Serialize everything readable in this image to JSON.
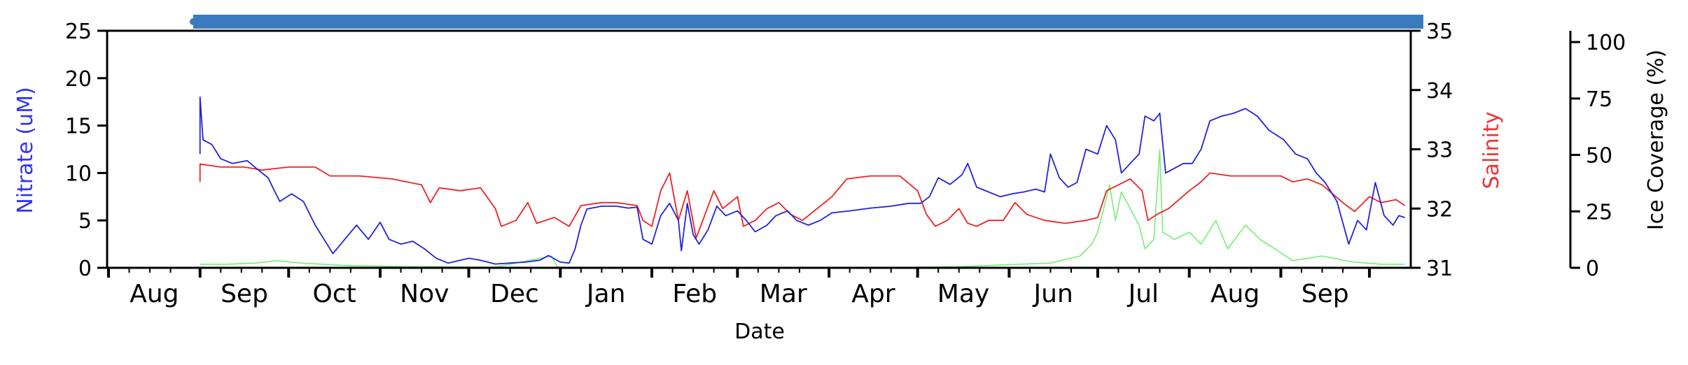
{
  "chart_data": {
    "type": "line",
    "xlabel": "Date",
    "x_ticks": [
      "Aug",
      "Sep",
      "Oct",
      "Nov",
      "Dec",
      "Jan",
      "Feb",
      "Mar",
      "Apr",
      "May",
      "Jun",
      "Jul",
      "Aug",
      "Sep"
    ],
    "axes": {
      "nitrate": {
        "label": "Nitrate (uM)",
        "ylim": [
          0,
          25
        ],
        "ticks": [
          "0",
          "5",
          "10",
          "15",
          "20",
          "25"
        ],
        "color": "#3333ee"
      },
      "salinity": {
        "label": "Salinity",
        "ylim": [
          31,
          35
        ],
        "ticks": [
          "31",
          "32",
          "33",
          "34",
          "35"
        ],
        "color": "#ee3333"
      },
      "ice": {
        "label": "Ice Coverage (%)",
        "ylim": [
          0,
          100
        ],
        "ticks": [
          "0",
          "25",
          "50",
          "75",
          "100"
        ],
        "color": "#000000"
      }
    },
    "grid": false,
    "series": [
      {
        "axis": "nitrate",
        "color": "#2222dd",
        "points": [
          [
            "2019-09-01",
            12.0
          ],
          [
            "2019-09-01",
            18.0
          ],
          [
            "2019-09-02",
            13.5
          ],
          [
            "2019-09-05",
            13.0
          ],
          [
            "2019-09-08",
            11.5
          ],
          [
            "2019-09-12",
            11.0
          ],
          [
            "2019-09-17",
            11.3
          ],
          [
            "2019-09-20",
            10.5
          ],
          [
            "2019-09-24",
            9.5
          ],
          [
            "2019-09-28",
            7.0
          ],
          [
            "2019-10-02",
            7.8
          ],
          [
            "2019-10-06",
            7.0
          ],
          [
            "2019-10-10",
            4.5
          ],
          [
            "2019-10-14",
            2.5
          ],
          [
            "2019-10-16",
            1.5
          ],
          [
            "2019-10-20",
            3.0
          ],
          [
            "2019-10-24",
            4.5
          ],
          [
            "2019-10-28",
            3.0
          ],
          [
            "2019-11-01",
            4.8
          ],
          [
            "2019-11-04",
            3.0
          ],
          [
            "2019-11-08",
            2.5
          ],
          [
            "2019-11-12",
            2.8
          ],
          [
            "2019-11-16",
            2.0
          ],
          [
            "2019-11-20",
            1.0
          ],
          [
            "2019-11-24",
            0.5
          ],
          [
            "2019-12-01",
            1.0
          ],
          [
            "2019-12-05",
            0.8
          ],
          [
            "2019-12-10",
            0.4
          ],
          [
            "2019-12-15",
            0.5
          ],
          [
            "2019-12-20",
            0.6
          ],
          [
            "2019-12-25",
            0.8
          ],
          [
            "2019-12-28",
            1.3
          ],
          [
            "2020-01-01",
            0.6
          ],
          [
            "2020-01-04",
            0.5
          ],
          [
            "2020-01-06",
            2.0
          ],
          [
            "2020-01-08",
            4.5
          ],
          [
            "2020-01-10",
            6.2
          ],
          [
            "2020-01-15",
            6.5
          ],
          [
            "2020-01-20",
            6.5
          ],
          [
            "2020-01-24",
            6.3
          ],
          [
            "2020-01-27",
            6.4
          ],
          [
            "2020-01-29",
            3.0
          ],
          [
            "2020-02-01",
            2.5
          ],
          [
            "2020-02-04",
            5.5
          ],
          [
            "2020-02-07",
            6.8
          ],
          [
            "2020-02-10",
            5.0
          ],
          [
            "2020-02-11",
            1.8
          ],
          [
            "2020-02-13",
            6.8
          ],
          [
            "2020-02-15",
            3.5
          ],
          [
            "2020-02-17",
            2.5
          ],
          [
            "2020-02-20",
            4.0
          ],
          [
            "2020-02-23",
            6.5
          ],
          [
            "2020-02-26",
            5.5
          ],
          [
            "2020-03-01",
            6.0
          ],
          [
            "2020-03-04",
            5.0
          ],
          [
            "2020-03-07",
            3.8
          ],
          [
            "2020-03-11",
            4.5
          ],
          [
            "2020-03-14",
            5.5
          ],
          [
            "2020-03-18",
            6.0
          ],
          [
            "2020-03-21",
            5.0
          ],
          [
            "2020-03-25",
            4.5
          ],
          [
            "2020-03-29",
            5.0
          ],
          [
            "2020-04-02",
            5.8
          ],
          [
            "2020-04-08",
            6.0
          ],
          [
            "2020-04-15",
            6.3
          ],
          [
            "2020-04-22",
            6.5
          ],
          [
            "2020-04-28",
            6.8
          ],
          [
            "2020-05-02",
            6.8
          ],
          [
            "2020-05-05",
            7.5
          ],
          [
            "2020-05-08",
            9.5
          ],
          [
            "2020-05-12",
            8.8
          ],
          [
            "2020-05-16",
            9.8
          ],
          [
            "2020-05-18",
            11.0
          ],
          [
            "2020-05-21",
            8.5
          ],
          [
            "2020-05-25",
            8.0
          ],
          [
            "2020-05-29",
            7.5
          ],
          [
            "2020-06-02",
            7.8
          ],
          [
            "2020-06-06",
            8.0
          ],
          [
            "2020-06-10",
            8.3
          ],
          [
            "2020-06-13",
            8.0
          ],
          [
            "2020-06-15",
            12.0
          ],
          [
            "2020-06-18",
            9.5
          ],
          [
            "2020-06-21",
            8.5
          ],
          [
            "2020-06-24",
            9.0
          ],
          [
            "2020-06-27",
            12.5
          ],
          [
            "2020-07-01",
            12.0
          ],
          [
            "2020-07-04",
            15.0
          ],
          [
            "2020-07-07",
            13.5
          ],
          [
            "2020-07-09",
            10.0
          ],
          [
            "2020-07-12",
            11.0
          ],
          [
            "2020-07-15",
            12.0
          ],
          [
            "2020-07-17",
            16.0
          ],
          [
            "2020-07-20",
            15.5
          ],
          [
            "2020-07-22",
            16.3
          ],
          [
            "2020-07-24",
            10.0
          ],
          [
            "2020-07-27",
            10.5
          ],
          [
            "2020-07-30",
            11.0
          ],
          [
            "2020-08-02",
            11.0
          ],
          [
            "2020-08-05",
            12.5
          ],
          [
            "2020-08-08",
            15.5
          ],
          [
            "2020-08-12",
            16.0
          ],
          [
            "2020-08-16",
            16.3
          ],
          [
            "2020-08-20",
            16.8
          ],
          [
            "2020-08-24",
            16.0
          ],
          [
            "2020-08-28",
            14.5
          ],
          [
            "2020-09-02",
            13.5
          ],
          [
            "2020-09-06",
            12.0
          ],
          [
            "2020-09-10",
            11.5
          ],
          [
            "2020-09-13",
            10.0
          ],
          [
            "2020-09-16",
            9.0
          ],
          [
            "2020-09-20",
            7.0
          ],
          [
            "2020-09-24",
            2.5
          ],
          [
            "2020-09-27",
            5.0
          ],
          [
            "2020-09-30",
            4.0
          ],
          [
            "2020-10-03",
            9.0
          ],
          [
            "2020-10-06",
            5.5
          ],
          [
            "2020-10-09",
            4.5
          ],
          [
            "2020-10-11",
            5.5
          ],
          [
            "2020-10-13",
            5.3
          ]
        ]
      },
      {
        "axis": "salinity",
        "color": "#ee2222",
        "points": [
          [
            "2019-09-01",
            32.45
          ],
          [
            "2019-09-01",
            32.75
          ],
          [
            "2019-09-08",
            32.7
          ],
          [
            "2019-09-16",
            32.7
          ],
          [
            "2019-09-22",
            32.65
          ],
          [
            "2019-10-01",
            32.7
          ],
          [
            "2019-10-10",
            32.7
          ],
          [
            "2019-10-15",
            32.55
          ],
          [
            "2019-10-25",
            32.55
          ],
          [
            "2019-11-05",
            32.5
          ],
          [
            "2019-11-15",
            32.4
          ],
          [
            "2019-11-18",
            32.1
          ],
          [
            "2019-11-21",
            32.35
          ],
          [
            "2019-11-28",
            32.3
          ],
          [
            "2019-12-05",
            32.35
          ],
          [
            "2019-12-10",
            32.0
          ],
          [
            "2019-12-12",
            31.7
          ],
          [
            "2019-12-17",
            31.8
          ],
          [
            "2019-12-21",
            32.1
          ],
          [
            "2019-12-24",
            31.75
          ],
          [
            "2019-12-30",
            31.85
          ],
          [
            "2020-01-04",
            31.7
          ],
          [
            "2020-01-08",
            32.05
          ],
          [
            "2020-01-15",
            32.1
          ],
          [
            "2020-01-20",
            32.1
          ],
          [
            "2020-01-27",
            32.05
          ],
          [
            "2020-01-29",
            31.8
          ],
          [
            "2020-02-01",
            31.7
          ],
          [
            "2020-02-04",
            32.3
          ],
          [
            "2020-02-07",
            32.6
          ],
          [
            "2020-02-10",
            31.8
          ],
          [
            "2020-02-13",
            32.3
          ],
          [
            "2020-02-16",
            31.5
          ],
          [
            "2020-02-19",
            31.9
          ],
          [
            "2020-02-22",
            32.3
          ],
          [
            "2020-02-25",
            32.0
          ],
          [
            "2020-03-01",
            32.2
          ],
          [
            "2020-03-03",
            31.7
          ],
          [
            "2020-03-07",
            31.8
          ],
          [
            "2020-03-11",
            32.0
          ],
          [
            "2020-03-15",
            32.1
          ],
          [
            "2020-03-19",
            31.9
          ],
          [
            "2020-03-23",
            31.8
          ],
          [
            "2020-03-28",
            32.0
          ],
          [
            "2020-04-02",
            32.2
          ],
          [
            "2020-04-07",
            32.5
          ],
          [
            "2020-04-15",
            32.55
          ],
          [
            "2020-04-25",
            32.55
          ],
          [
            "2020-05-01",
            32.3
          ],
          [
            "2020-05-04",
            31.9
          ],
          [
            "2020-05-07",
            31.7
          ],
          [
            "2020-05-11",
            31.8
          ],
          [
            "2020-05-15",
            32.0
          ],
          [
            "2020-05-18",
            31.75
          ],
          [
            "2020-05-21",
            31.7
          ],
          [
            "2020-05-25",
            31.8
          ],
          [
            "2020-05-30",
            31.8
          ],
          [
            "2020-06-03",
            32.1
          ],
          [
            "2020-06-07",
            31.9
          ],
          [
            "2020-06-13",
            31.8
          ],
          [
            "2020-06-20",
            31.75
          ],
          [
            "2020-06-27",
            31.8
          ],
          [
            "2020-07-01",
            31.85
          ],
          [
            "2020-07-04",
            32.3
          ],
          [
            "2020-07-08",
            32.4
          ],
          [
            "2020-07-12",
            32.5
          ],
          [
            "2020-07-16",
            32.3
          ],
          [
            "2020-07-18",
            31.8
          ],
          [
            "2020-07-21",
            31.9
          ],
          [
            "2020-07-25",
            32.0
          ],
          [
            "2020-08-01",
            32.3
          ],
          [
            "2020-08-05",
            32.45
          ],
          [
            "2020-08-08",
            32.6
          ],
          [
            "2020-08-15",
            32.55
          ],
          [
            "2020-08-22",
            32.55
          ],
          [
            "2020-09-01",
            32.55
          ],
          [
            "2020-09-05",
            32.45
          ],
          [
            "2020-09-10",
            32.5
          ],
          [
            "2020-09-15",
            32.4
          ],
          [
            "2020-09-22",
            32.1
          ],
          [
            "2020-09-26",
            31.95
          ],
          [
            "2020-10-01",
            32.2
          ],
          [
            "2020-10-05",
            32.1
          ],
          [
            "2020-10-10",
            32.15
          ],
          [
            "2020-10-13",
            32.05
          ]
        ]
      },
      {
        "axis": "ice",
        "color": "#77ee77",
        "points": [
          [
            "2019-09-01",
            1.5
          ],
          [
            "2019-09-10",
            1.5
          ],
          [
            "2019-09-20",
            2.0
          ],
          [
            "2019-09-27",
            3.0
          ],
          [
            "2019-10-05",
            2.0
          ],
          [
            "2019-10-20",
            1.0
          ],
          [
            "2019-11-10",
            0.5
          ],
          [
            "2019-12-10",
            0.3
          ],
          [
            "2019-12-29",
            5.0
          ],
          [
            "2019-12-31",
            0.3
          ],
          [
            "2020-02-15",
            0.0
          ],
          [
            "2020-04-15",
            0.0
          ],
          [
            "2020-05-15",
            0.5
          ],
          [
            "2020-06-15",
            2.0
          ],
          [
            "2020-06-25",
            5.0
          ],
          [
            "2020-06-29",
            10.0
          ],
          [
            "2020-07-01",
            15.0
          ],
          [
            "2020-07-03",
            25.0
          ],
          [
            "2020-07-05",
            35.0
          ],
          [
            "2020-07-07",
            20.0
          ],
          [
            "2020-07-09",
            32.0
          ],
          [
            "2020-07-12",
            25.0
          ],
          [
            "2020-07-15",
            18.0
          ],
          [
            "2020-07-17",
            8.0
          ],
          [
            "2020-07-20",
            12.0
          ],
          [
            "2020-07-22",
            50.0
          ],
          [
            "2020-07-23",
            15.0
          ],
          [
            "2020-07-27",
            12.0
          ],
          [
            "2020-08-01",
            15.0
          ],
          [
            "2020-08-05",
            10.0
          ],
          [
            "2020-08-10",
            20.0
          ],
          [
            "2020-08-14",
            8.0
          ],
          [
            "2020-08-20",
            18.0
          ],
          [
            "2020-08-25",
            12.0
          ],
          [
            "2020-08-30",
            8.0
          ],
          [
            "2020-09-05",
            3.0
          ],
          [
            "2020-09-15",
            5.0
          ],
          [
            "2020-09-25",
            2.5
          ],
          [
            "2020-10-05",
            1.5
          ],
          [
            "2020-10-13",
            1.5
          ]
        ]
      }
    ],
    "colorbar": {
      "color": "#3a7bbf"
    }
  }
}
